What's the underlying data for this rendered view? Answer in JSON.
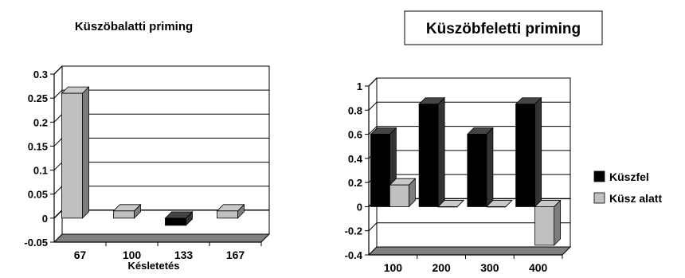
{
  "chart_data": [
    {
      "type": "bar",
      "title": "Küszöbalatti priming",
      "xlabel": "Késletetés",
      "ylabel": "",
      "categories": [
        "67",
        "100",
        "133",
        "167"
      ],
      "ylim": [
        -0.05,
        0.3
      ],
      "yticks": [
        -0.05,
        0,
        0.05,
        0.1,
        0.15,
        0.2,
        0.25,
        0.3
      ],
      "ytick_labels": [
        "-0.05",
        "0",
        "0.05",
        "0.1",
        "0.15",
        "0.2",
        "0.25",
        "0.3"
      ],
      "series": [
        {
          "values": [
            0.26,
            0.015,
            -0.015,
            0.015
          ],
          "color": "#c0c0c0",
          "negative_color": "#000000"
        }
      ],
      "grid": true,
      "style": "3d"
    },
    {
      "type": "bar",
      "title": "Küszöbfeletti priming",
      "xlabel": "",
      "ylabel": "",
      "categories": [
        "100",
        "200",
        "300",
        "400"
      ],
      "ylim": [
        -0.4,
        1
      ],
      "yticks": [
        -0.4,
        -0.2,
        0,
        0.2,
        0.4,
        0.6,
        0.8,
        1
      ],
      "ytick_labels": [
        "-0.4",
        "-0.2",
        "0",
        "0.2",
        "0.4",
        "0.6",
        "0.8",
        "1"
      ],
      "series": [
        {
          "name": "Küszfel",
          "values": [
            0.6,
            0.85,
            0.6,
            0.85
          ],
          "color": "#000000"
        },
        {
          "name": "Küsz alatt",
          "values": [
            0.18,
            0,
            0,
            -0.32
          ],
          "color": "#c0c0c0"
        }
      ],
      "legend": "right",
      "grid": true,
      "style": "3d"
    }
  ]
}
